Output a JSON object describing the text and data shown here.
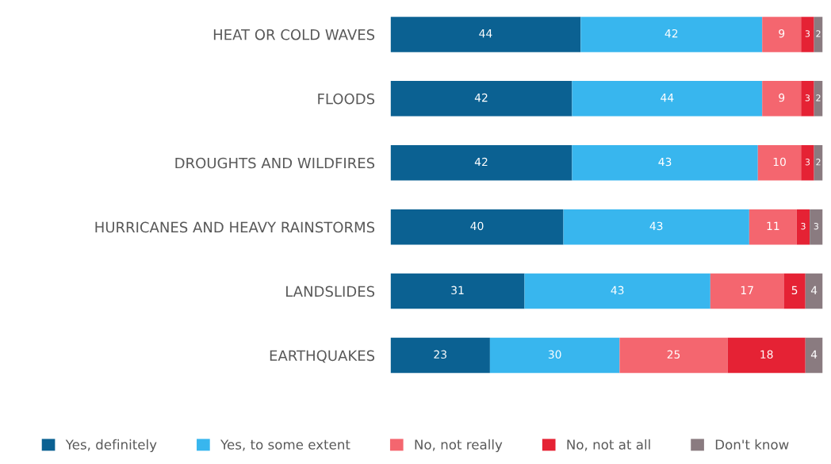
{
  "chart_data": {
    "type": "bar",
    "orientation": "horizontal",
    "stacked": true,
    "data_labels": true,
    "legend": "bottom",
    "grid": false,
    "categories": [
      "HEAT OR COLD WAVES",
      "FLOODS",
      "DROUGHTS AND WILDFIRES",
      "HURRICANES AND HEAVY RAINSTORMS",
      "LANDSLIDES",
      "EARTHQUAKES"
    ],
    "series": [
      {
        "name": "Yes, definitely",
        "color": "#0b6192",
        "values": [
          44,
          42,
          42,
          40,
          31,
          23
        ]
      },
      {
        "name": "Yes, to some extent",
        "color": "#38b6ee",
        "values": [
          42,
          44,
          43,
          43,
          43,
          30
        ]
      },
      {
        "name": "No, not really",
        "color": "#f4666f",
        "values": [
          9,
          9,
          10,
          11,
          17,
          25
        ]
      },
      {
        "name": "No, not at all",
        "color": "#e52234",
        "values": [
          3,
          3,
          3,
          3,
          5,
          18
        ]
      },
      {
        "name": "Don't know",
        "color": "#8a7b80",
        "values": [
          2,
          2,
          2,
          3,
          4,
          4
        ]
      }
    ]
  }
}
